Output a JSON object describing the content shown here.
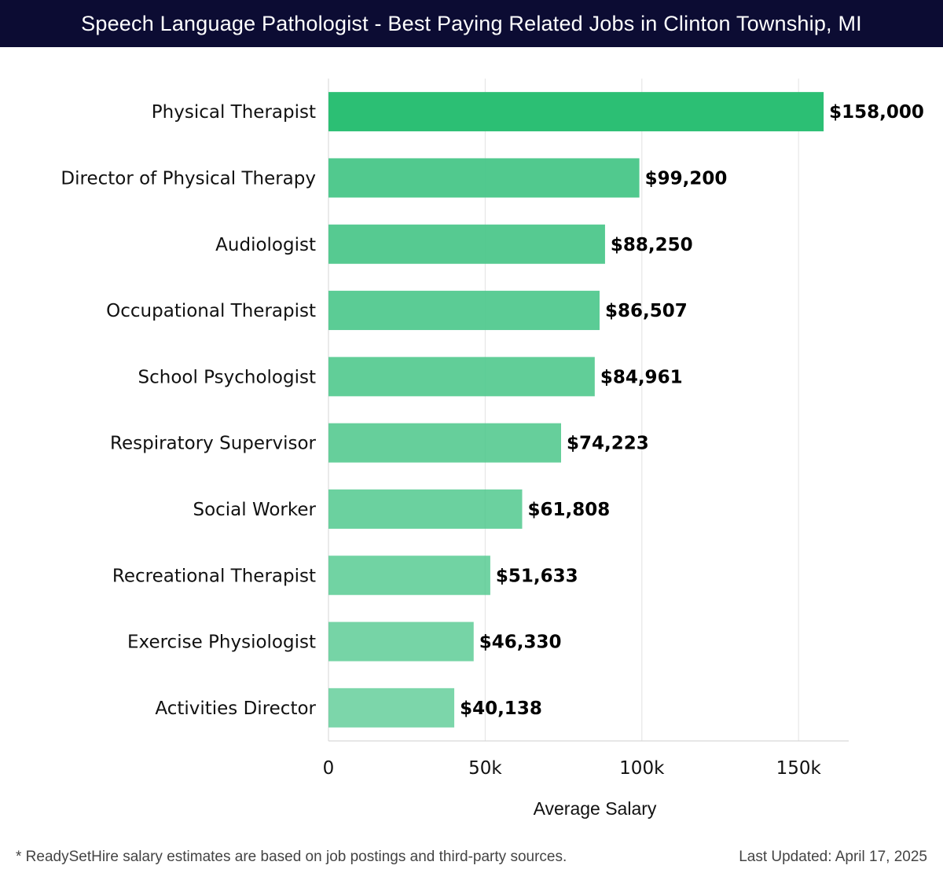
{
  "header": {
    "title": "Speech Language Pathologist - Best Paying Related Jobs in Clinton Township, MI"
  },
  "colors": {
    "header_bg": "#0c0c33",
    "bar_top": "#2cbf74",
    "bar_base": "#4bc78a",
    "grid": "#e3e3e3"
  },
  "chart_data": {
    "type": "bar",
    "orientation": "horizontal",
    "title": "Speech Language Pathologist - Best Paying Related Jobs in Clinton Township, MI",
    "xlabel": "Average Salary",
    "ylabel": "",
    "xlim": [
      0,
      166000
    ],
    "ticks": [
      0,
      50000,
      100000,
      150000
    ],
    "tick_labels": [
      "0",
      "50k",
      "100k",
      "150k"
    ],
    "grid": true,
    "categories": [
      "Physical Therapist",
      "Director of Physical Therapy",
      "Audiologist",
      "Occupational Therapist",
      "School Psychologist",
      "Respiratory Supervisor",
      "Social Worker",
      "Recreational Therapist",
      "Exercise Physiologist",
      "Activities Director"
    ],
    "values": [
      158000,
      99200,
      88250,
      86507,
      84961,
      74223,
      61808,
      51633,
      46330,
      40138
    ],
    "value_labels": [
      "$158,000",
      "$99,200",
      "$88,250",
      "$86,507",
      "$84,961",
      "$74,223",
      "$61,808",
      "$51,633",
      "$46,330",
      "$40,138"
    ]
  },
  "footer": {
    "note": "* ReadySetHire salary estimates are based on job postings and third-party sources.",
    "updated": "Last Updated: April 17, 2025"
  }
}
